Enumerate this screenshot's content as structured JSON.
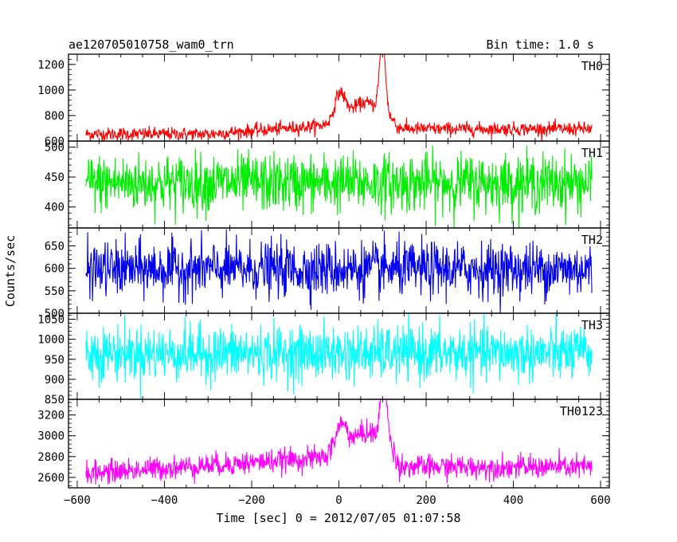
{
  "header": {
    "left_title": "ae120705010758_wam0_trn",
    "right_title": "Bin time: 1.0 s"
  },
  "chart_data": {
    "type": "line",
    "xlabel": "Time [sec] 0 = 2012/07/05 01:07:58",
    "ylabel": "Counts/sec",
    "xlim": [
      -620,
      620
    ],
    "x_ticks": [
      -600,
      -400,
      -200,
      0,
      200,
      400,
      600
    ],
    "x_range_data": [
      -580,
      580
    ],
    "bin_time_s": 1.0,
    "grid": false,
    "panels": [
      {
        "name": "TH0",
        "color": "#ff0000",
        "ylim": [
          600,
          1280
        ],
        "y_ticks": [
          600,
          800,
          1000,
          1200
        ],
        "baseline": 655,
        "noise": 26,
        "features": [
          {
            "type": "ramp",
            "from": -300,
            "to": 0,
            "start_level": 655,
            "end_level": 730
          },
          {
            "type": "peak",
            "center": 2,
            "amplitude": 210,
            "width": 12
          },
          {
            "type": "peak",
            "center": 60,
            "amplitude": 170,
            "width": 35
          },
          {
            "type": "peak",
            "center": 100,
            "amplitude": 560,
            "width": 7
          },
          {
            "type": "plateau",
            "from": 130,
            "to": 580,
            "level": 695
          }
        ]
      },
      {
        "name": "TH1",
        "color": "#00ee00",
        "ylim": [
          365,
          510
        ],
        "y_ticks": [
          400,
          450,
          500
        ],
        "baseline": 440,
        "noise": 24,
        "features": []
      },
      {
        "name": "TH2",
        "color": "#0000ee",
        "ylim": [
          500,
          690
        ],
        "y_ticks": [
          500,
          550,
          600,
          650
        ],
        "baseline": 598,
        "noise": 30,
        "features": []
      },
      {
        "name": "TH3",
        "color": "#00ffff",
        "ylim": [
          850,
          1065
        ],
        "y_ticks": [
          850,
          900,
          950,
          1000,
          1050
        ],
        "baseline": 965,
        "noise": 34,
        "features": []
      },
      {
        "name": "TH0123",
        "color": "#ff00ff",
        "ylim": [
          2500,
          3350
        ],
        "y_ticks": [
          2600,
          2800,
          3000,
          3200
        ],
        "baseline": 2640,
        "noise": 55,
        "features": [
          {
            "type": "ramp",
            "from": -580,
            "to": 80,
            "start_level": 2640,
            "end_level": 2820
          },
          {
            "type": "peak",
            "center": 5,
            "amplitude": 260,
            "width": 14
          },
          {
            "type": "peak",
            "center": 65,
            "amplitude": 220,
            "width": 35
          },
          {
            "type": "peak",
            "center": 103,
            "amplitude": 640,
            "width": 7
          },
          {
            "type": "plateau",
            "from": 130,
            "to": 580,
            "level": 2700
          }
        ]
      }
    ]
  }
}
